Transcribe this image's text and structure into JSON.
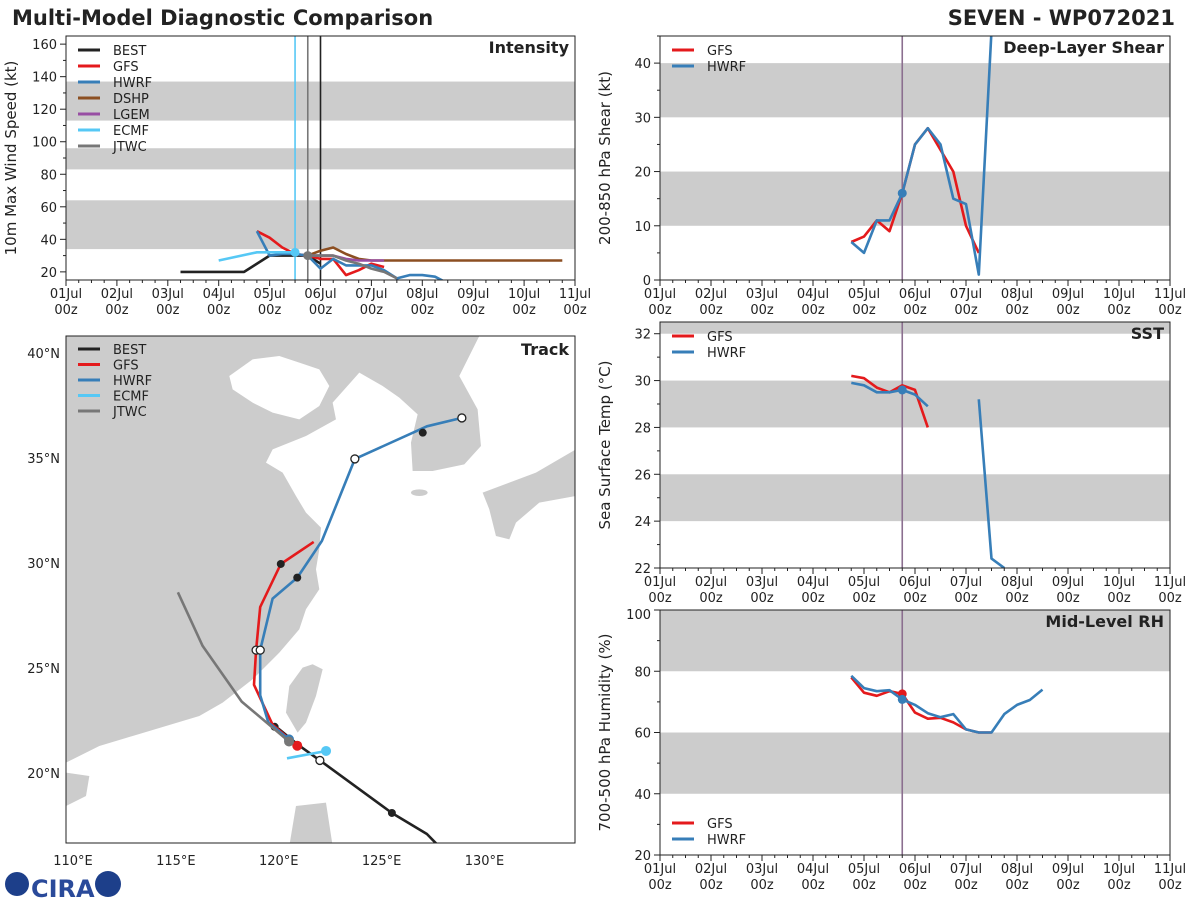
{
  "header": {
    "title": "Multi-Model Diagnostic Comparison",
    "storm": "SEVEN - WP072021"
  },
  "logo": {
    "text": "CIRA"
  },
  "colors": {
    "BEST": "#222222",
    "GFS": "#e41a1c",
    "HWRF": "#377eb8",
    "DSHP": "#8c4f22",
    "LGEM": "#984ea3",
    "ECMF": "#56c8f5",
    "JTWC": "#777777",
    "shading": "#cccccc",
    "land": "#cccccc",
    "analysis_line": "#8b6f8f"
  },
  "time_ticks": [
    [
      "01Jul",
      "00z"
    ],
    [
      "02Jul",
      "00z"
    ],
    [
      "03Jul",
      "00z"
    ],
    [
      "04Jul",
      "00z"
    ],
    [
      "05Jul",
      "00z"
    ],
    [
      "06Jul",
      "00z"
    ],
    [
      "07Jul",
      "00z"
    ],
    [
      "08Jul",
      "00z"
    ],
    [
      "09Jul",
      "00z"
    ],
    [
      "10Jul",
      "00z"
    ],
    [
      "11Jul",
      "00z"
    ]
  ],
  "chart_data": [
    {
      "id": "intensity",
      "type": "line",
      "title": "Intensity",
      "ylabel": "10m Max Wind Speed (kt)",
      "xlim": [
        "01/00",
        "11/00"
      ],
      "ylim": [
        15,
        165
      ],
      "yticks": [
        20,
        40,
        60,
        80,
        100,
        120,
        140,
        160
      ],
      "shaded": [
        [
          34,
          64
        ],
        [
          83,
          96
        ],
        [
          113,
          137
        ]
      ],
      "vlines": [
        {
          "t": "05/12",
          "color": "#56c8f5"
        },
        {
          "t": "05/18",
          "color": "#777777"
        },
        {
          "t": "06/00",
          "color": "#222222"
        }
      ],
      "legend": {
        "position": "top-left",
        "entries": [
          "BEST",
          "GFS",
          "HWRF",
          "DSHP",
          "LGEM",
          "ECMF",
          "JTWC"
        ]
      },
      "series": [
        {
          "name": "BEST",
          "points": [
            [
              "03/06",
              20
            ],
            [
              "04/12",
              20
            ],
            [
              "05/00",
              30
            ],
            [
              "05/06",
              30
            ],
            [
              "05/12",
              30
            ],
            [
              "05/18",
              30
            ],
            [
              "06/00",
              25
            ]
          ]
        },
        {
          "name": "GFS",
          "points": [
            [
              "04/18",
              45
            ],
            [
              "05/00",
              41
            ],
            [
              "05/06",
              35
            ],
            [
              "05/12",
              31
            ],
            [
              "05/18",
              30
            ],
            [
              "06/00",
              28
            ],
            [
              "06/06",
              28
            ],
            [
              "06/12",
              18
            ],
            [
              "06/18",
              21
            ],
            [
              "07/00",
              25
            ],
            [
              "07/06",
              23
            ]
          ]
        },
        {
          "name": "HWRF",
          "points": [
            [
              "04/18",
              45
            ],
            [
              "05/00",
              30
            ],
            [
              "05/06",
              31
            ],
            [
              "05/12",
              31
            ],
            [
              "05/18",
              30
            ],
            [
              "06/00",
              22
            ],
            [
              "06/06",
              28
            ],
            [
              "06/12",
              24
            ],
            [
              "06/18",
              24
            ],
            [
              "07/00",
              24
            ],
            [
              "07/06",
              21
            ],
            [
              "07/12",
              16
            ],
            [
              "07/18",
              18
            ],
            [
              "08/00",
              18
            ],
            [
              "08/06",
              17
            ],
            [
              "08/12",
              13
            ]
          ]
        },
        {
          "name": "DSHP",
          "points": [
            [
              "05/18",
              30
            ],
            [
              "06/00",
              33
            ],
            [
              "06/06",
              35
            ],
            [
              "06/12",
              31
            ],
            [
              "06/18",
              28
            ],
            [
              "07/00",
              27
            ],
            [
              "08/00",
              27
            ],
            [
              "09/00",
              27
            ],
            [
              "10/00",
              27
            ],
            [
              "10/18",
              27
            ]
          ]
        },
        {
          "name": "LGEM",
          "points": [
            [
              "05/18",
              30
            ],
            [
              "06/00",
              30
            ],
            [
              "06/06",
              30
            ],
            [
              "06/12",
              28
            ],
            [
              "06/18",
              27
            ],
            [
              "07/00",
              27
            ],
            [
              "07/06",
              27
            ]
          ]
        },
        {
          "name": "ECMF",
          "points": [
            [
              "04/00",
              27
            ],
            [
              "04/18",
              32
            ],
            [
              "05/00",
              32
            ],
            [
              "05/12",
              32
            ]
          ],
          "markers": [
            [
              "05/12",
              32
            ]
          ]
        },
        {
          "name": "JTWC",
          "points": [
            [
              "05/18",
              30
            ],
            [
              "06/00",
              30
            ],
            [
              "06/06",
              30
            ],
            [
              "06/12",
              27
            ],
            [
              "06/18",
              25
            ],
            [
              "07/00",
              22
            ],
            [
              "07/06",
              20
            ],
            [
              "07/12",
              16
            ]
          ],
          "markers": [
            [
              "05/18",
              30
            ]
          ]
        }
      ]
    },
    {
      "id": "shear",
      "type": "line",
      "title": "Deep-Layer Shear",
      "ylabel": "200-850 hPa Shear (kt)",
      "xlim": [
        "01/00",
        "11/00"
      ],
      "ylim": [
        0,
        45
      ],
      "yticks": [
        0,
        10,
        20,
        30,
        40
      ],
      "shaded": [
        [
          10,
          20
        ],
        [
          30,
          40
        ]
      ],
      "vlines": [
        {
          "t": "05/18",
          "color": "#8b6f8f"
        }
      ],
      "legend": {
        "position": "top-left",
        "entries": [
          "GFS",
          "HWRF"
        ]
      },
      "series": [
        {
          "name": "GFS",
          "points": [
            [
              "04/18",
              7
            ],
            [
              "05/00",
              8
            ],
            [
              "05/06",
              11
            ],
            [
              "05/12",
              9
            ],
            [
              "05/18",
              16
            ],
            [
              "06/00",
              25
            ],
            [
              "06/06",
              28
            ],
            [
              "06/12",
              24
            ],
            [
              "06/18",
              20
            ],
            [
              "07/00",
              10
            ],
            [
              "07/06",
              5
            ]
          ]
        },
        {
          "name": "HWRF",
          "points": [
            [
              "04/18",
              7
            ],
            [
              "05/00",
              5
            ],
            [
              "05/06",
              11
            ],
            [
              "05/12",
              11
            ],
            [
              "05/18",
              16
            ],
            [
              "06/00",
              25
            ],
            [
              "06/06",
              28
            ],
            [
              "06/12",
              25
            ],
            [
              "06/18",
              15
            ],
            [
              "07/00",
              14
            ],
            [
              "07/06",
              1
            ],
            [
              "07/12",
              46
            ]
          ],
          "markers": [
            [
              "05/18",
              16
            ]
          ]
        }
      ]
    },
    {
      "id": "sst",
      "type": "line",
      "title": "SST",
      "ylabel": "Sea Surface Temp (°C)",
      "xlim": [
        "01/00",
        "11/00"
      ],
      "ylim": [
        22,
        32.5
      ],
      "yticks": [
        22,
        24,
        26,
        28,
        30,
        32
      ],
      "shaded": [
        [
          24,
          26
        ],
        [
          28,
          30
        ],
        [
          32,
          33
        ]
      ],
      "vlines": [
        {
          "t": "05/18",
          "color": "#8b6f8f"
        }
      ],
      "legend": {
        "position": "top-left",
        "entries": [
          "GFS",
          "HWRF"
        ]
      },
      "series": [
        {
          "name": "GFS",
          "points": [
            [
              "04/18",
              30.2
            ],
            [
              "05/00",
              30.1
            ],
            [
              "05/06",
              29.7
            ],
            [
              "05/12",
              29.5
            ],
            [
              "05/18",
              29.8
            ],
            [
              "06/00",
              29.6
            ],
            [
              "06/06",
              28.0
            ]
          ]
        },
        {
          "name": "HWRF",
          "points": [
            [
              "04/18",
              29.9
            ],
            [
              "05/00",
              29.8
            ],
            [
              "05/06",
              29.5
            ],
            [
              "05/12",
              29.5
            ],
            [
              "05/18",
              29.6
            ],
            [
              "06/00",
              29.4
            ],
            [
              "06/06",
              28.9
            ],
            null,
            [
              "07/06",
              29.2
            ],
            [
              "07/12",
              22.4
            ],
            [
              "07/18",
              22.0
            ]
          ],
          "markers": [
            [
              "05/18",
              29.6
            ]
          ]
        }
      ]
    },
    {
      "id": "rh",
      "type": "line",
      "title": "Mid-Level RH",
      "ylabel": "700-500 hPa Humidity (%)",
      "xlim": [
        "01/00",
        "11/00"
      ],
      "ylim": [
        20,
        100
      ],
      "yticks": [
        20,
        40,
        60,
        80,
        100
      ],
      "shaded": [
        [
          40,
          60
        ],
        [
          80,
          100
        ]
      ],
      "vlines": [
        {
          "t": "05/18",
          "color": "#8b6f8f"
        }
      ],
      "legend": {
        "position": "bottom-left",
        "entries": [
          "GFS",
          "HWRF"
        ]
      },
      "series": [
        {
          "name": "GFS",
          "points": [
            [
              "04/18",
              78
            ],
            [
              "05/00",
              73
            ],
            [
              "05/06",
              72
            ],
            [
              "05/12",
              73.5
            ],
            [
              "05/18",
              72.6
            ],
            [
              "06/00",
              66.5
            ],
            [
              "06/06",
              64.5
            ],
            [
              "06/12",
              64.8
            ],
            [
              "06/18",
              63.3
            ],
            [
              "07/00",
              61
            ],
            [
              "07/06",
              60
            ],
            [
              "07/12",
              60
            ]
          ],
          "markers": [
            [
              "05/18",
              72.6
            ]
          ]
        },
        {
          "name": "HWRF",
          "points": [
            [
              "04/18",
              78.5
            ],
            [
              "05/00",
              74.5
            ],
            [
              "05/06",
              73.5
            ],
            [
              "05/12",
              73.8
            ],
            [
              "05/18",
              70.8
            ],
            [
              "06/00",
              69
            ],
            [
              "06/06",
              66.3
            ],
            [
              "06/12",
              65
            ],
            [
              "06/18",
              66
            ],
            [
              "07/00",
              61
            ],
            [
              "07/06",
              60
            ],
            [
              "07/12",
              60
            ],
            [
              "07/18",
              66
            ],
            [
              "08/00",
              69
            ],
            [
              "08/06",
              70.6
            ],
            [
              "08/12",
              74
            ]
          ],
          "markers": [
            [
              "05/18",
              70.8
            ]
          ]
        }
      ]
    },
    {
      "id": "track",
      "type": "map",
      "title": "Track",
      "xlim": [
        109.66,
        134.4
      ],
      "ylim": [
        16.67,
        40.8
      ],
      "xticks": [
        110,
        115,
        120,
        125,
        130
      ],
      "xticklabels": [
        "110°E",
        "115°E",
        "120°E",
        "125°E",
        "130°E"
      ],
      "yticks": [
        20,
        25,
        30,
        35,
        40
      ],
      "yticklabels": [
        "20°N",
        "25°N",
        "30°N",
        "35°N",
        "40°N"
      ],
      "legend": {
        "position": "top-left",
        "entries": [
          "BEST",
          "GFS",
          "HWRF",
          "ECMF",
          "JTWC"
        ]
      },
      "series": [
        {
          "name": "BEST",
          "points": [
            [
              127.8,
              16.5
            ],
            [
              127.2,
              17.1
            ],
            [
              125.5,
              18.1
            ],
            [
              122.0,
              20.6
            ],
            [
              121.0,
              21.3
            ],
            [
              120.0,
              22.1
            ],
            [
              119.7,
              22.2
            ]
          ],
          "markers": [
            {
              "lon": 125.5,
              "lat": 18.1,
              "style": "filled"
            },
            {
              "lon": 122.0,
              "lat": 20.6,
              "style": "open"
            },
            {
              "lon": 119.8,
              "lat": 22.2,
              "style": "filled"
            }
          ]
        },
        {
          "name": "GFS",
          "points": [
            [
              120.9,
              21.3
            ],
            [
              119.7,
              22.3
            ],
            [
              118.8,
              24.2
            ],
            [
              118.9,
              25.85
            ],
            [
              119.1,
              27.9
            ],
            [
              120.1,
              29.95
            ],
            [
              121.7,
              31.0
            ]
          ],
          "markers": [
            {
              "lon": 120.9,
              "lat": 21.3,
              "style": "color"
            },
            {
              "lon": 118.9,
              "lat": 25.85,
              "style": "open"
            },
            {
              "lon": 120.1,
              "lat": 29.95,
              "style": "filled"
            }
          ]
        },
        {
          "name": "HWRF",
          "points": [
            [
              120.5,
              21.6
            ],
            [
              119.5,
              22.4
            ],
            [
              119.1,
              23.7
            ],
            [
              119.1,
              25.85
            ],
            [
              119.7,
              28.3
            ],
            [
              120.9,
              29.3
            ],
            [
              122.1,
              31.05
            ],
            [
              123.7,
              34.95
            ],
            [
              126.75,
              36.3
            ],
            [
              127.2,
              36.5
            ],
            [
              128.9,
              36.9
            ]
          ],
          "markers": [
            {
              "lon": 120.5,
              "lat": 21.6,
              "style": "color"
            },
            {
              "lon": 119.1,
              "lat": 25.85,
              "style": "open"
            },
            {
              "lon": 120.9,
              "lat": 29.3,
              "style": "filled"
            },
            {
              "lon": 123.7,
              "lat": 34.95,
              "style": "open"
            },
            {
              "lon": 127.0,
              "lat": 36.2,
              "style": "filled"
            },
            {
              "lon": 128.9,
              "lat": 36.9,
              "style": "open"
            }
          ]
        },
        {
          "name": "ECMF",
          "points": [
            [
              120.4,
              20.7
            ],
            [
              122.3,
              21.05
            ]
          ],
          "markers": [
            {
              "lon": 122.3,
              "lat": 21.05,
              "style": "color"
            }
          ]
        },
        {
          "name": "JTWC",
          "points": [
            [
              115.1,
              28.6
            ],
            [
              116.3,
              26.05
            ],
            [
              118.2,
              23.4
            ],
            [
              120.5,
              21.5
            ]
          ],
          "markers": [
            {
              "lon": 120.5,
              "lat": 21.5,
              "style": "color"
            }
          ]
        }
      ]
    }
  ]
}
